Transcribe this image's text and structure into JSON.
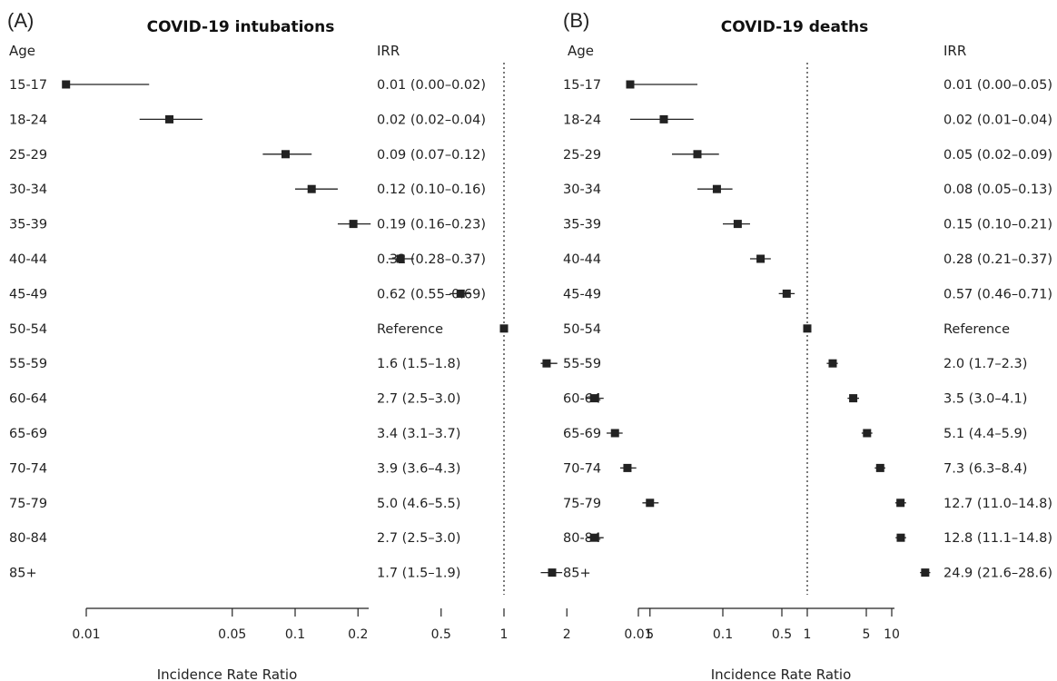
{
  "chart_data": [
    {
      "type": "forest",
      "panel_label": "(A)",
      "title": "COVID-19 intubations",
      "row_header": "Age",
      "value_header": "IRR",
      "xlabel": "Incidence Rate Ratio",
      "x_scale": "log",
      "xlim": [
        0.006,
        6
      ],
      "reference_value": 1,
      "x_ticks": [
        0.01,
        0.05,
        0.1,
        0.2,
        0.5,
        1,
        2,
        5
      ],
      "x_tick_labels": [
        "0.01",
        "0.05",
        "0.1",
        "0.2",
        "0.5",
        "1",
        "2",
        "5"
      ],
      "rows": [
        {
          "age": "15-17",
          "irr": 0.008,
          "low": 0.008,
          "high": 0.02,
          "label": "0.01 (0.00–0.02)"
        },
        {
          "age": "18-24",
          "irr": 0.025,
          "low": 0.018,
          "high": 0.036,
          "label": "0.02 (0.02–0.04)"
        },
        {
          "age": "25-29",
          "irr": 0.09,
          "low": 0.07,
          "high": 0.12,
          "label": "0.09 (0.07–0.12)"
        },
        {
          "age": "30-34",
          "irr": 0.12,
          "low": 0.1,
          "high": 0.16,
          "label": "0.12 (0.10–0.16)"
        },
        {
          "age": "35-39",
          "irr": 0.19,
          "low": 0.16,
          "high": 0.23,
          "label": "0.19 (0.16–0.23)"
        },
        {
          "age": "40-44",
          "irr": 0.32,
          "low": 0.28,
          "high": 0.37,
          "label": "0.32 (0.28–0.37)"
        },
        {
          "age": "45-49",
          "irr": 0.62,
          "low": 0.55,
          "high": 0.69,
          "label": "0.62 (0.55–0.69)"
        },
        {
          "age": "50-54",
          "irr": 1,
          "low": 1,
          "high": 1,
          "label": "Reference"
        },
        {
          "age": "55-59",
          "irr": 1.6,
          "low": 1.5,
          "high": 1.8,
          "label": "1.6 (1.5–1.8)"
        },
        {
          "age": "60-64",
          "irr": 2.7,
          "low": 2.5,
          "high": 3.0,
          "label": "2.7 (2.5–3.0)"
        },
        {
          "age": "65-69",
          "irr": 3.4,
          "low": 3.1,
          "high": 3.7,
          "label": "3.4 (3.1–3.7)"
        },
        {
          "age": "70-74",
          "irr": 3.9,
          "low": 3.6,
          "high": 4.3,
          "label": "3.9 (3.6–4.3)"
        },
        {
          "age": "75-79",
          "irr": 5.0,
          "low": 4.6,
          "high": 5.5,
          "label": "5.0 (4.6–5.5)"
        },
        {
          "age": "80-84",
          "irr": 2.7,
          "low": 2.5,
          "high": 3.0,
          "label": "2.7 (2.5–3.0)"
        },
        {
          "age": "85+",
          "irr": 1.7,
          "low": 1.5,
          "high": 1.9,
          "label": "1.7 (1.5–1.9)"
        }
      ]
    },
    {
      "type": "forest",
      "panel_label": "(B)",
      "title": "COVID-19 deaths",
      "row_header": "Age",
      "value_header": "IRR",
      "xlabel": "Incidence Rate Ratio",
      "x_scale": "log",
      "xlim": [
        0.006,
        30
      ],
      "reference_value": 1,
      "x_ticks": [
        0.01,
        0.1,
        0.5,
        1,
        5,
        10
      ],
      "x_tick_labels": [
        "0.01",
        "0.1",
        "0.5",
        "1",
        "5",
        "10"
      ],
      "rows": [
        {
          "age": "15-17",
          "irr": 0.008,
          "low": 0.008,
          "high": 0.05,
          "label": "0.01 (0.00–0.05)"
        },
        {
          "age": "18-24",
          "irr": 0.02,
          "low": 0.008,
          "high": 0.045,
          "label": "0.02 (0.01–0.04)"
        },
        {
          "age": "25-29",
          "irr": 0.05,
          "low": 0.025,
          "high": 0.09,
          "label": "0.05 (0.02–0.09)"
        },
        {
          "age": "30-34",
          "irr": 0.085,
          "low": 0.05,
          "high": 0.13,
          "label": "0.08 (0.05–0.13)"
        },
        {
          "age": "35-39",
          "irr": 0.15,
          "low": 0.1,
          "high": 0.21,
          "label": "0.15 (0.10–0.21)"
        },
        {
          "age": "40-44",
          "irr": 0.28,
          "low": 0.21,
          "high": 0.37,
          "label": "0.28 (0.21–0.37)"
        },
        {
          "age": "45-49",
          "irr": 0.57,
          "low": 0.46,
          "high": 0.71,
          "label": "0.57 (0.46–0.71)"
        },
        {
          "age": "50-54",
          "irr": 1,
          "low": 1,
          "high": 1,
          "label": "Reference"
        },
        {
          "age": "55-59",
          "irr": 2.0,
          "low": 1.7,
          "high": 2.3,
          "label": "2.0 (1.7–2.3)"
        },
        {
          "age": "60-64",
          "irr": 3.5,
          "low": 3.0,
          "high": 4.1,
          "label": "3.5 (3.0–4.1)"
        },
        {
          "age": "65-69",
          "irr": 5.1,
          "low": 4.4,
          "high": 5.9,
          "label": "5.1 (4.4–5.9)"
        },
        {
          "age": "70-74",
          "irr": 7.3,
          "low": 6.3,
          "high": 8.4,
          "label": "7.3 (6.3–8.4)"
        },
        {
          "age": "75-79",
          "irr": 12.7,
          "low": 11.0,
          "high": 14.8,
          "label": "12.7 (11.0–14.8)"
        },
        {
          "age": "80-84",
          "irr": 12.8,
          "low": 11.1,
          "high": 14.8,
          "label": "12.8 (11.1–14.8)"
        },
        {
          "age": "85+",
          "irr": 24.9,
          "low": 21.6,
          "high": 28.6,
          "label": "24.9 (21.6–28.6)"
        }
      ]
    }
  ]
}
